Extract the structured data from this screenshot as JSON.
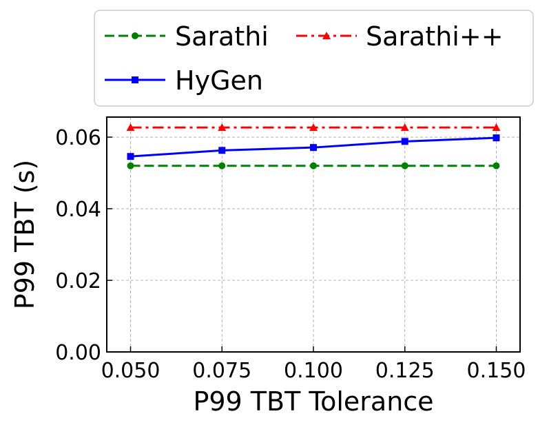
{
  "chart_data": {
    "type": "line",
    "xlabel": "P99 TBT Tolerance",
    "ylabel": "P99 TBT (s)",
    "x": [
      0.05,
      0.075,
      0.1,
      0.125,
      0.15
    ],
    "x_tick_labels": [
      "0.050",
      "0.075",
      "0.100",
      "0.125",
      "0.150"
    ],
    "y_tick_values": [
      0.0,
      0.02,
      0.04,
      0.06
    ],
    "y_tick_labels": [
      "0.00",
      "0.02",
      "0.04",
      "0.06"
    ],
    "xlim": [
      0.0435,
      0.1565
    ],
    "ylim": [
      0.0,
      0.0656
    ],
    "grid": true,
    "legend_position": "top, outside plot, 2 columns",
    "series": [
      {
        "name": "Sarathi",
        "values": [
          0.052,
          0.052,
          0.052,
          0.052,
          0.052
        ],
        "color": "#008000",
        "line_style": "dashed",
        "marker": "circle"
      },
      {
        "name": "Sarathi++",
        "values": [
          0.0627,
          0.0627,
          0.0627,
          0.0627,
          0.0627
        ],
        "color": "#ff0000",
        "line_style": "dash-dot",
        "marker": "triangle"
      },
      {
        "name": "HyGen",
        "values": [
          0.0546,
          0.0563,
          0.0571,
          0.0588,
          0.0598
        ],
        "color": "#0000ff",
        "line_style": "solid",
        "marker": "square"
      }
    ]
  }
}
